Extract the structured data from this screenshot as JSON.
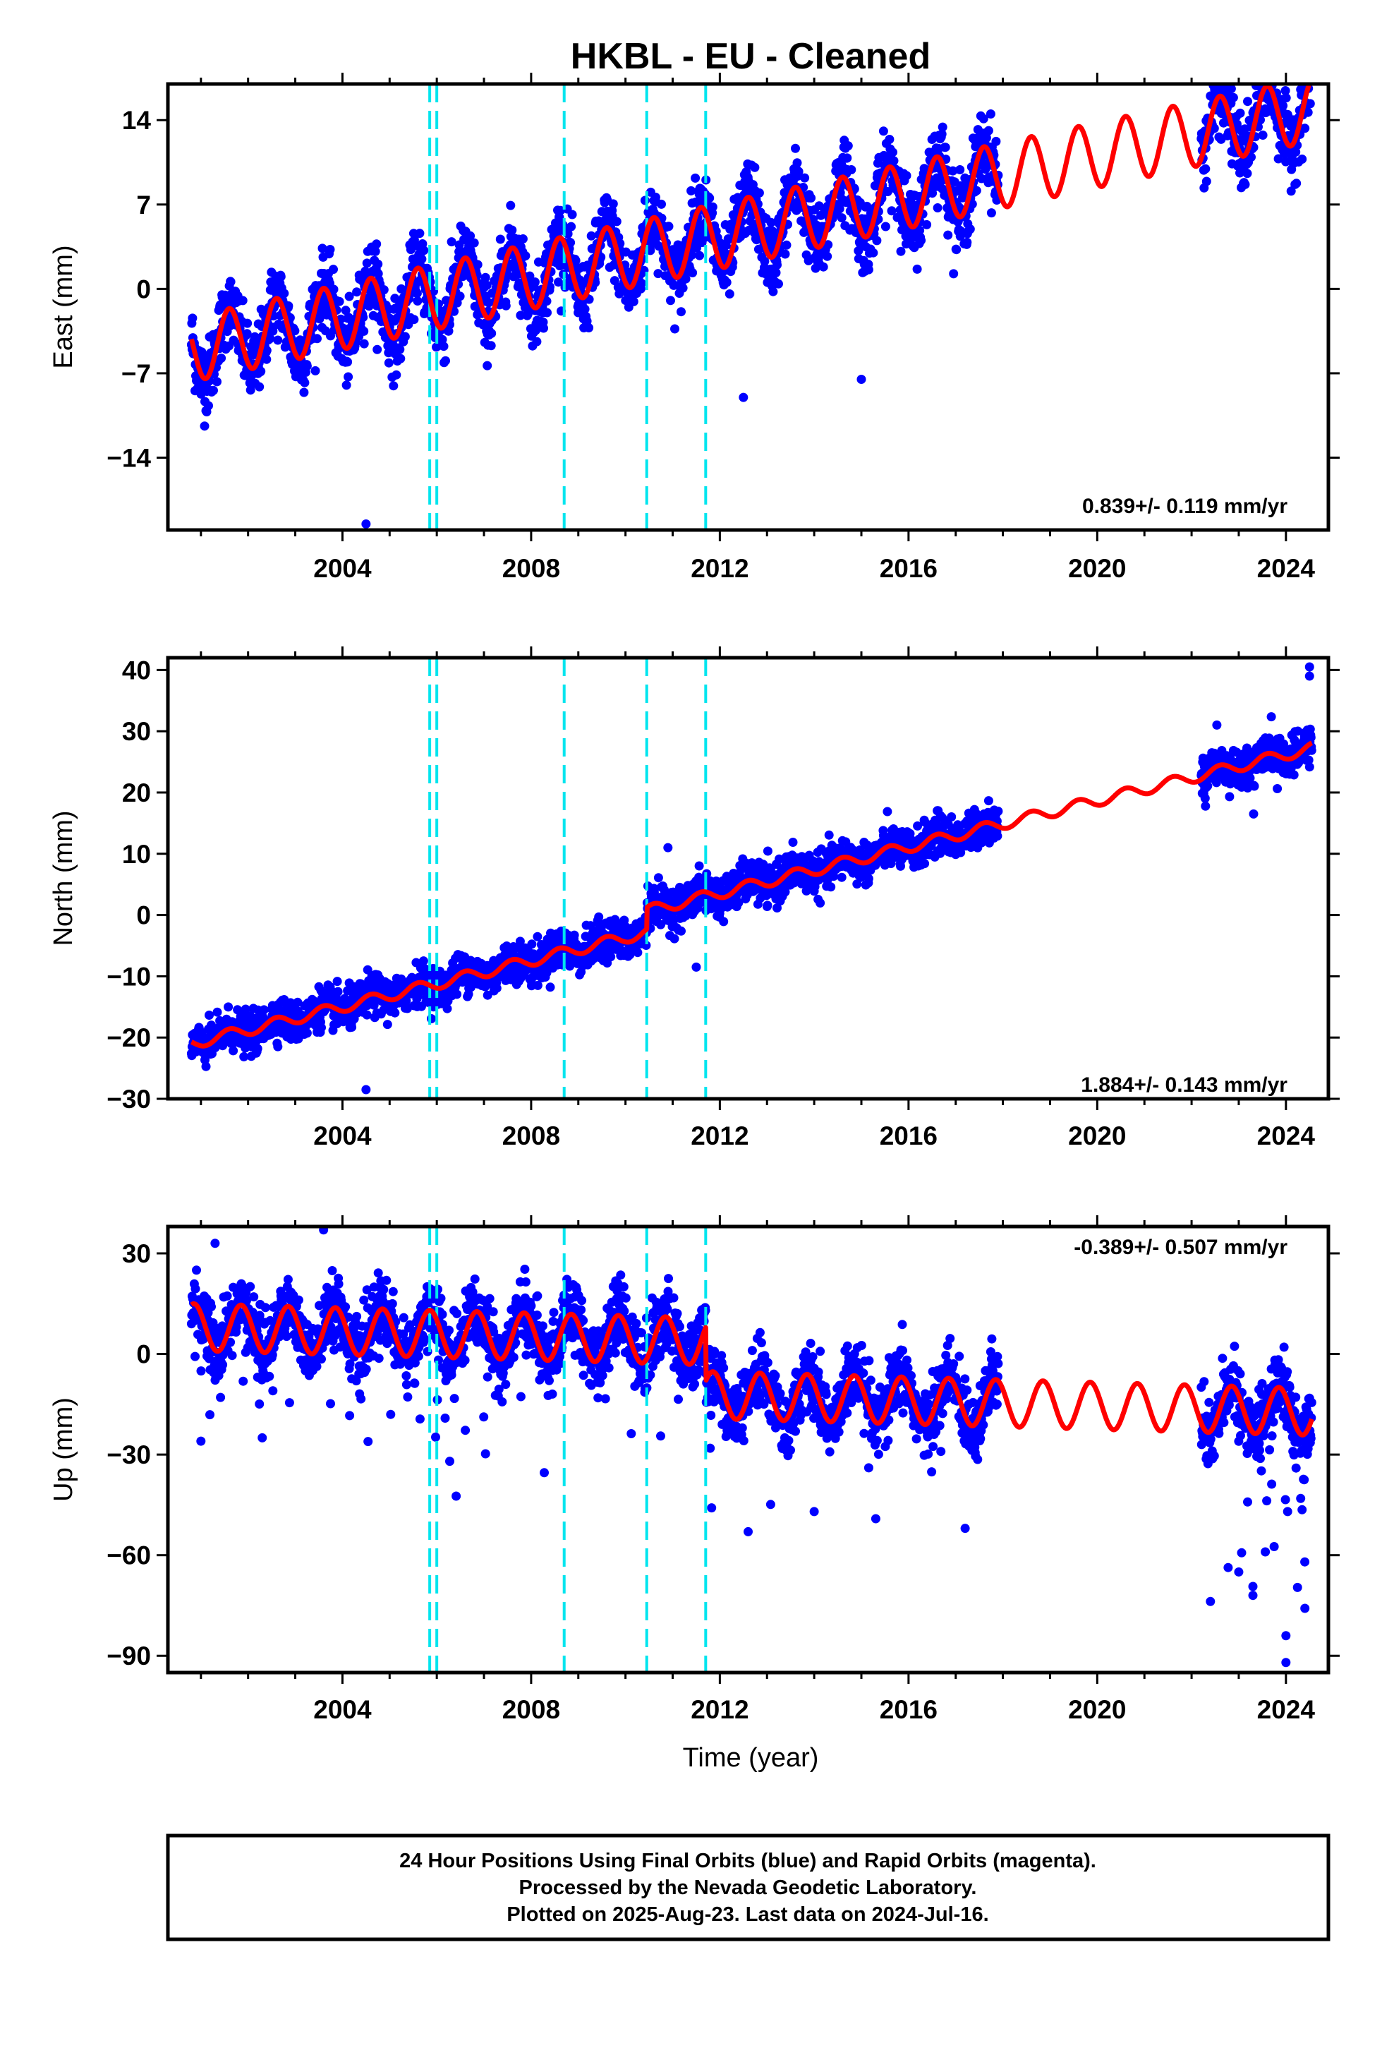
{
  "title": "HKBL  - EU - Cleaned",
  "xlabel": "Time (year)",
  "footer": {
    "line1": "24 Hour Positions Using Final Orbits (blue) and Rapid Orbits (magenta).",
    "line2": "Processed by the Nevada Geodetic Laboratory.",
    "line3": "Plotted on 2025-Aug-23. Last data on 2024-Jul-16."
  },
  "colors": {
    "data": "#0000ff",
    "model": "#ff0000",
    "steps": "#00e5ee",
    "axes": "#000000"
  },
  "chart_data": [
    {
      "type": "scatter",
      "name": "east",
      "ylabel": "East (mm)",
      "rate_text": "0.839+/- 0.119 mm/yr",
      "xlim": [
        2000.3,
        2024.9
      ],
      "ylim": [
        -20,
        17
      ],
      "yticks": [
        -14,
        -7,
        0,
        7,
        14
      ],
      "xticks": [
        2004,
        2008,
        2012,
        2016,
        2020,
        2024
      ],
      "step_epochs": [
        2005.85,
        2006.0,
        2008.7,
        2010.45,
        2011.7
      ],
      "data_range": [
        2000.8,
        2024.55
      ],
      "gap": [
        2017.9,
        2022.2
      ],
      "model": {
        "start": 2000.8,
        "end": 2024.55,
        "offset": -5.0,
        "rate": 0.839,
        "amp": 2.7,
        "phase_year": 0.35,
        "steps": []
      },
      "noise_sd": 1.5,
      "outliers": [
        [
          2004.5,
          -19.5
        ],
        [
          2015.0,
          -7.5
        ],
        [
          2011.85,
          6.8
        ],
        [
          2012.5,
          -9.0
        ]
      ]
    },
    {
      "type": "scatter",
      "name": "north",
      "ylabel": "North (mm)",
      "rate_text": "1.884+/- 0.143 mm/yr",
      "xlim": [
        2000.3,
        2024.9
      ],
      "ylim": [
        -30,
        42
      ],
      "yticks": [
        -30,
        -20,
        -10,
        0,
        10,
        20,
        30,
        40
      ],
      "xticks": [
        2004,
        2008,
        2012,
        2016,
        2020,
        2024
      ],
      "step_epochs": [
        2005.85,
        2006.0,
        2008.7,
        2010.45,
        2011.7
      ],
      "data_range": [
        2000.8,
        2024.55
      ],
      "gap": [
        2017.9,
        2022.2
      ],
      "model": {
        "start": 2000.8,
        "end": 2024.55,
        "offset": -21.0,
        "rate": 1.884,
        "amp": 0.9,
        "phase_year": 0.35,
        "steps": [
          [
            2010.45,
            3.5
          ]
        ]
      },
      "noise_sd": 1.6,
      "outliers": [
        [
          2004.5,
          -28.5
        ],
        [
          2024.5,
          40.5
        ],
        [
          2024.5,
          39.0
        ],
        [
          2010.9,
          11.0
        ],
        [
          2011.5,
          -8.5
        ]
      ]
    },
    {
      "type": "scatter",
      "name": "up",
      "ylabel": "Up (mm)",
      "rate_text": "-0.389+/- 0.507 mm/yr",
      "xlim": [
        2000.3,
        2024.9
      ],
      "ylim": [
        -95,
        38
      ],
      "yticks": [
        -90,
        -60,
        -30,
        0,
        30
      ],
      "xticks": [
        2004,
        2008,
        2012,
        2016,
        2020,
        2024
      ],
      "step_epochs": [
        2005.85,
        2006.0,
        2008.7,
        2010.45,
        2011.7
      ],
      "data_range": [
        2000.8,
        2024.55
      ],
      "gap": [
        2017.9,
        2022.2
      ],
      "model": {
        "start": 2000.8,
        "end": 2024.55,
        "offset": 8.0,
        "rate": -0.389,
        "amp": 7.0,
        "phase_year": 0.6,
        "steps": [
          [
            2011.7,
            -16.0
          ]
        ]
      },
      "noise_sd": 5.0,
      "outliers": [
        [
          2003.6,
          37.0
        ],
        [
          2001.3,
          33.0
        ],
        [
          2012.6,
          -53.0
        ],
        [
          2017.2,
          -52.0
        ],
        [
          2023.3,
          -72.0
        ],
        [
          2024.0,
          -92.0
        ],
        [
          2024.0,
          -84.0
        ],
        [
          2023.0,
          -65.0
        ],
        [
          2024.4,
          -62.0
        ],
        [
          2002.3,
          -25.0
        ],
        [
          2001.0,
          -26.0
        ],
        [
          2014.0,
          -47.0
        ]
      ]
    }
  ]
}
